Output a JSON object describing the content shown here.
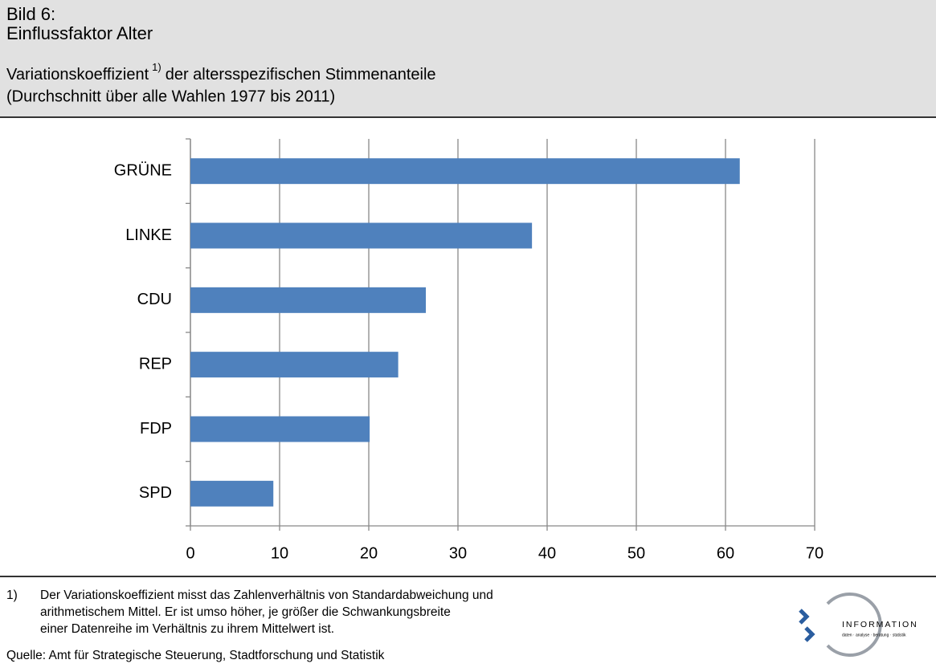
{
  "chart_data": {
    "type": "bar",
    "orientation": "horizontal",
    "title": [
      "Bild 6:",
      "Einflussfaktor Alter"
    ],
    "subtitle": {
      "text": "Variationskoeffizient",
      "footnote_mark": "1)",
      "text_after": "der altersspezifischen Stimmenanteile",
      "line2": "(Durchschnitt über alle Wahlen 1977 bis 2011)"
    },
    "categories": [
      "GRÜNE",
      "LINKE",
      "CDU",
      "REP",
      "FDP",
      "SPD"
    ],
    "values": [
      61.6,
      38.3,
      26.4,
      23.3,
      20.1,
      9.3
    ],
    "color": "#4f81bd",
    "xlim": [
      0,
      70
    ],
    "xticks": [
      0,
      10,
      20,
      30,
      40,
      50,
      60,
      70
    ],
    "grid": true,
    "footnote": {
      "mark": "1)",
      "lines": [
        "Der Variationskoeffizient misst das Zahlenverhältnis von Standardabweichung und",
        "arithmetischem Mittel. Er ist umso höher, je größer die Schwankungsbreite",
        "einer Datenreihe im Verhältnis zu ihrem Mittelwert ist."
      ]
    },
    "source": "Quelle: Amt für Strategische Steuerung, Stadtforschung und Statistik",
    "logo": {
      "name": "INFORMATION",
      "tagline": "daten · analyse · beratung · statistik"
    }
  }
}
